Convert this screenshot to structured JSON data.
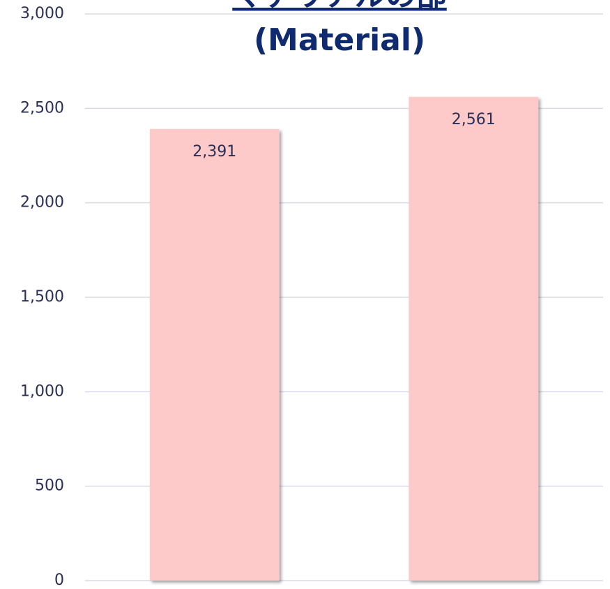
{
  "chart_data": {
    "type": "bar",
    "title": "マテリアルの部",
    "subtitle": "(Material)",
    "categories": [
      null,
      null
    ],
    "values": [
      2391,
      2561
    ],
    "value_labels": [
      "2,391",
      "2,561"
    ],
    "color": "#fdc9c9",
    "ylim": [
      0,
      3000
    ],
    "yticks": [
      0,
      500,
      {
        "value": 1000,
        "label": "1,000"
      },
      {
        "value": 1500,
        "label": "1,500"
      },
      {
        "value": 2000,
        "label": "2,000"
      },
      {
        "value": 2500,
        "label": "2,500"
      },
      {
        "value": 3000,
        "label": "3,000"
      }
    ],
    "grid": true
  }
}
